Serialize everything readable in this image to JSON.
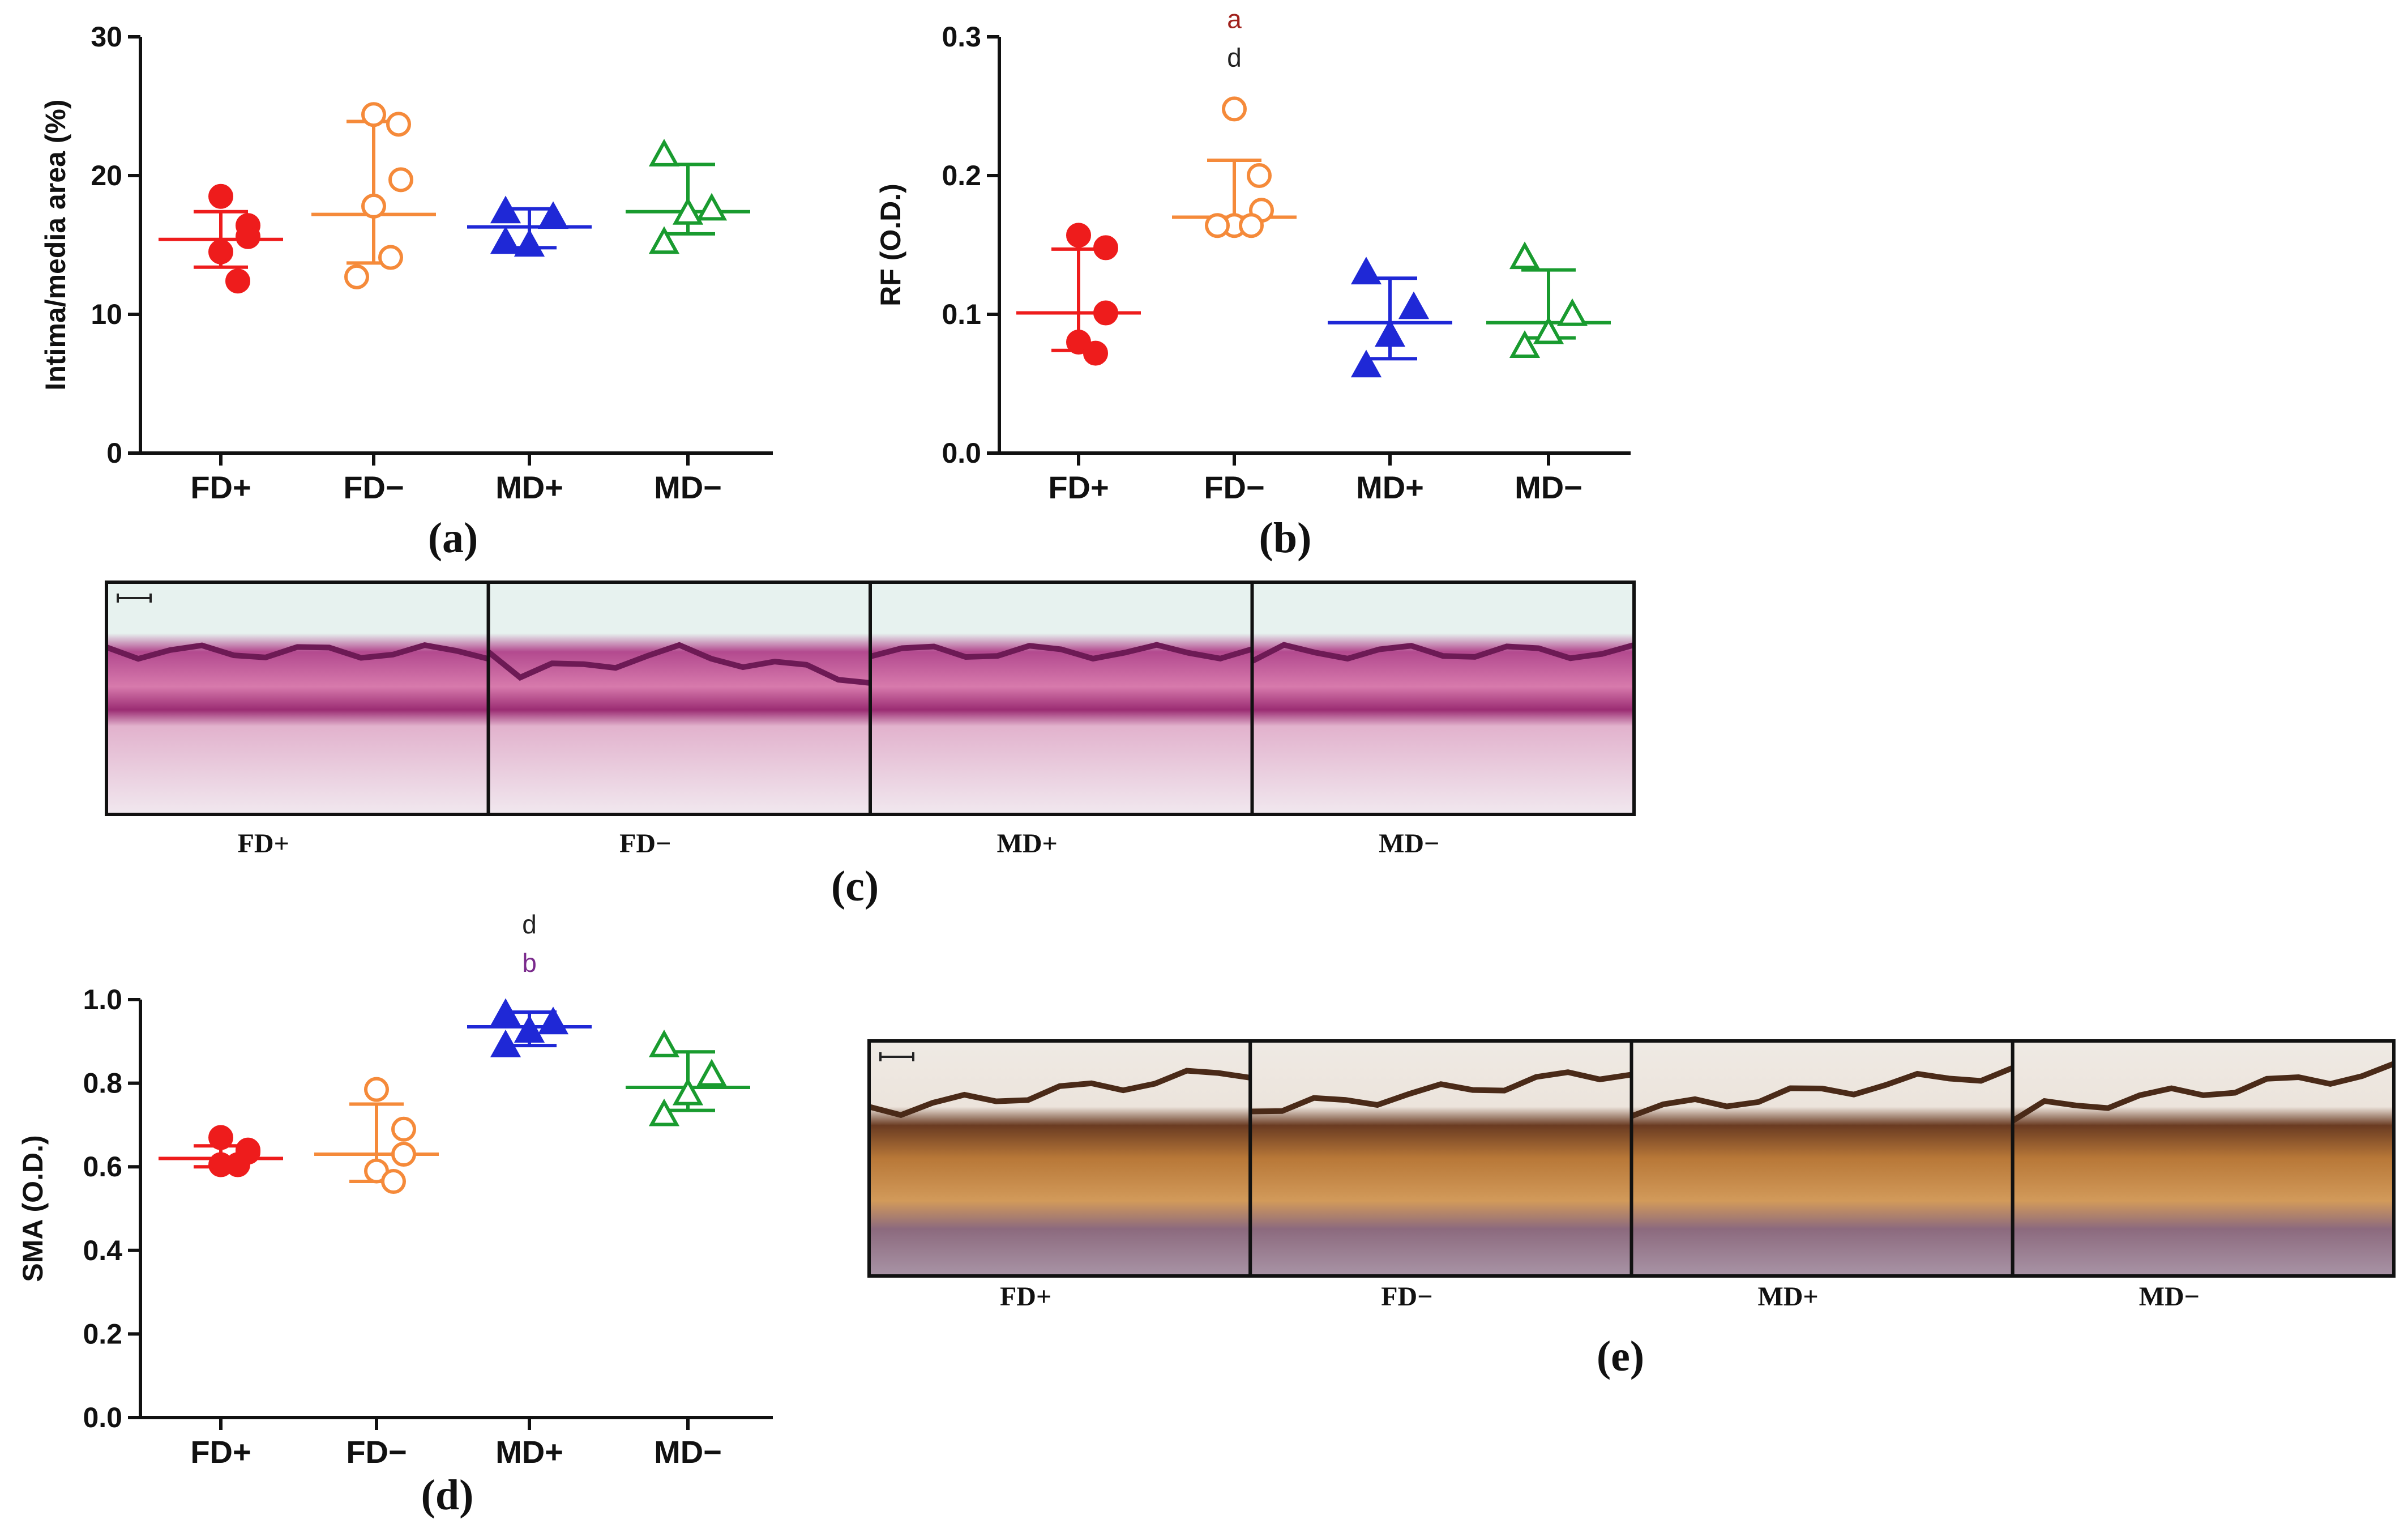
{
  "colors": {
    "FD+": "#ee1c1c",
    "FD−": "#f58a3a",
    "MD+": "#1f28d6",
    "MD−": "#199b2f",
    "sig_a": "#a0211c",
    "sig_d": "#222222",
    "sig_b": "#7a2a8c"
  },
  "chart_data": [
    {
      "type": "scatter",
      "panel_label": "(a)",
      "ylabel": "Intima/media area (%)",
      "ylim": [
        0,
        30
      ],
      "yticks": [
        0,
        10,
        20,
        30
      ],
      "ytick_labels": [
        "0",
        "10",
        "20",
        "30"
      ],
      "categories": [
        "FD+",
        "FD−",
        "MD+",
        "MD−"
      ],
      "groups": [
        {
          "name": "FD+",
          "marker": "circle-filled",
          "points": [
            18.5,
            16.4,
            15.6,
            14.5,
            12.4
          ],
          "mean": 15.4,
          "sd_low": 13.4,
          "sd_high": 17.4,
          "sig": []
        },
        {
          "name": "FD−",
          "marker": "circle-open",
          "points": [
            24.4,
            23.7,
            19.7,
            17.8,
            14.1,
            12.7
          ],
          "mean": 17.2,
          "sd_low": 13.7,
          "sd_high": 23.9,
          "sig": []
        },
        {
          "name": "MD+",
          "marker": "triangle-filled",
          "points": [
            17.4,
            17.0,
            15.0,
            15.2
          ],
          "mean": 16.3,
          "sd_low": 14.8,
          "sd_high": 17.6,
          "sig": []
        },
        {
          "name": "MD−",
          "marker": "triangle-open",
          "points": [
            21.5,
            17.6,
            17.3,
            15.2
          ],
          "mean": 17.4,
          "sd_low": 15.8,
          "sd_high": 20.8,
          "sig": []
        }
      ]
    },
    {
      "type": "scatter",
      "panel_label": "(b)",
      "ylabel": "RF (O.D.)",
      "ylim": [
        0,
        0.3
      ],
      "yticks": [
        0,
        0.1,
        0.2,
        0.3
      ],
      "ytick_labels": [
        "0.0",
        "0.1",
        "0.2",
        "0.3"
      ],
      "categories": [
        "FD+",
        "FD−",
        "MD+",
        "MD−"
      ],
      "groups": [
        {
          "name": "FD+",
          "marker": "circle-filled",
          "points": [
            0.157,
            0.148,
            0.101,
            0.08,
            0.072
          ],
          "mean": 0.101,
          "sd_low": 0.074,
          "sd_high": 0.147,
          "sig": []
        },
        {
          "name": "FD−",
          "marker": "circle-open",
          "points": [
            0.248,
            0.2,
            0.175,
            0.164,
            0.164,
            0.164
          ],
          "mean": 0.17,
          "sd_low": 0.17,
          "sd_high": 0.211,
          "sig": [
            {
              "text": "a",
              "color_key": "sig_a"
            },
            {
              "text": "d",
              "color_key": "sig_d"
            }
          ]
        },
        {
          "name": "MD+",
          "marker": "triangle-filled",
          "points": [
            0.13,
            0.105,
            0.085,
            0.063
          ],
          "mean": 0.094,
          "sd_low": 0.068,
          "sd_high": 0.126,
          "sig": []
        },
        {
          "name": "MD−",
          "marker": "triangle-open",
          "points": [
            0.141,
            0.1,
            0.087,
            0.077
          ],
          "mean": 0.094,
          "sd_low": 0.083,
          "sd_high": 0.132,
          "sig": []
        }
      ]
    },
    {
      "type": "scatter",
      "panel_label": "(d)",
      "ylabel": "SMA (O.D.)",
      "ylim": [
        0,
        1.0
      ],
      "yticks": [
        0,
        0.2,
        0.4,
        0.6,
        0.8,
        1.0
      ],
      "ytick_labels": [
        "0.0",
        "0.2",
        "0.4",
        "0.6",
        "0.8",
        "1.0"
      ],
      "categories": [
        "FD+",
        "FD−",
        "MD+",
        "MD−"
      ],
      "groups": [
        {
          "name": "FD+",
          "marker": "circle-filled",
          "points": [
            0.67,
            0.64,
            0.635,
            0.605,
            0.605
          ],
          "mean": 0.62,
          "sd_low": 0.6,
          "sd_high": 0.65,
          "sig": []
        },
        {
          "name": "FD−",
          "marker": "circle-open",
          "points": [
            0.785,
            0.69,
            0.63,
            0.59,
            0.565
          ],
          "mean": 0.63,
          "sd_low": 0.565,
          "sd_high": 0.75,
          "sig": []
        },
        {
          "name": "MD+",
          "marker": "triangle-filled",
          "points": [
            0.965,
            0.945,
            0.925,
            0.89
          ],
          "mean": 0.935,
          "sd_low": 0.89,
          "sd_high": 0.97,
          "sig": [
            {
              "text": "d",
              "color_key": "sig_d"
            },
            {
              "text": "b",
              "color_key": "sig_b"
            }
          ]
        },
        {
          "name": "MD−",
          "marker": "triangle-open",
          "points": [
            0.89,
            0.82,
            0.775,
            0.725
          ],
          "mean": 0.79,
          "sd_low": 0.735,
          "sd_high": 0.875,
          "sig": []
        }
      ]
    }
  ],
  "micrographs": [
    {
      "panel_label": "(c)",
      "stain": "pink-violet",
      "images": [
        {
          "label": "FD+",
          "tone": "pink"
        },
        {
          "label": "FD−",
          "tone": "pink"
        },
        {
          "label": "MD+",
          "tone": "pink"
        },
        {
          "label": "MD−",
          "tone": "pink"
        }
      ]
    },
    {
      "panel_label": "(e)",
      "stain": "brown",
      "images": [
        {
          "label": "FD+",
          "tone": "brown"
        },
        {
          "label": "FD−",
          "tone": "brown"
        },
        {
          "label": "MD+",
          "tone": "brown"
        },
        {
          "label": "MD−",
          "tone": "brown"
        }
      ]
    }
  ]
}
